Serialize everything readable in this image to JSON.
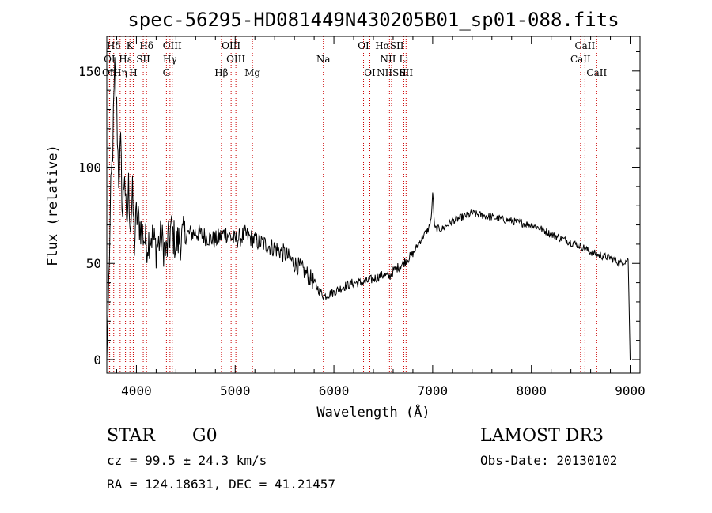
{
  "chart_data": {
    "type": "line",
    "title": "spec-56295-HD081449N430205B01_sp01-088.fits",
    "xlabel": "Wavelength (Å)",
    "ylabel": "Flux (relative)",
    "xlim": [
      3700,
      9100
    ],
    "ylim": [
      -7,
      168
    ],
    "xticks": [
      4000,
      5000,
      6000,
      7000,
      8000,
      9000
    ],
    "yticks": [
      0,
      50,
      100,
      150
    ],
    "x_tick_labels": [
      "4000",
      "5000",
      "6000",
      "7000",
      "8000",
      "9000"
    ],
    "y_tick_labels": [
      "0",
      "50",
      "100",
      "150"
    ],
    "line_color": "#000000",
    "marker_color": "#cc0000",
    "series": [
      {
        "name": "flux",
        "x": [
          3700,
          3720,
          3740,
          3760,
          3780,
          3800,
          3820,
          3840,
          3860,
          3880,
          3900,
          3920,
          3940,
          3960,
          3980,
          4000,
          4050,
          4100,
          4150,
          4200,
          4250,
          4300,
          4350,
          4400,
          4500,
          4600,
          4700,
          4800,
          4900,
          5000,
          5100,
          5200,
          5300,
          5400,
          5500,
          5600,
          5700,
          5800,
          5850,
          5900,
          5950,
          6000,
          6100,
          6200,
          6300,
          6400,
          6500,
          6563,
          6600,
          6700,
          6800,
          6900,
          6960,
          6990,
          7000,
          7020,
          7100,
          7200,
          7300,
          7400,
          7500,
          7600,
          7700,
          7800,
          7900,
          8000,
          8100,
          8200,
          8300,
          8400,
          8500,
          8600,
          8700,
          8800,
          8900,
          8980,
          9000
        ],
        "y": [
          0,
          40,
          85,
          110,
          150,
          130,
          95,
          110,
          75,
          100,
          65,
          90,
          70,
          85,
          60,
          75,
          68,
          60,
          65,
          58,
          63,
          55,
          68,
          60,
          65,
          66,
          64,
          62,
          66,
          62,
          65,
          62,
          60,
          58,
          55,
          50,
          46,
          40,
          36,
          33,
          34,
          35,
          38,
          40,
          40,
          42,
          44,
          43,
          46,
          50,
          55,
          64,
          68,
          75,
          88,
          68,
          68,
          72,
          74,
          76,
          75,
          74,
          73,
          72,
          71,
          70,
          68,
          65,
          63,
          61,
          59,
          56,
          54,
          53,
          50,
          52,
          0
        ]
      }
    ],
    "line_markers": [
      {
        "label": "Hδ",
        "x": 3770,
        "row": 1
      },
      {
        "label": "OI",
        "x": 3727,
        "row": 2
      },
      {
        "label": "OII",
        "x": 3729,
        "row": 3
      },
      {
        "label": "Hε",
        "x": 3889,
        "row": 2
      },
      {
        "label": "Hη",
        "x": 3835,
        "row": 3
      },
      {
        "label": "K",
        "x": 3934,
        "row": 1
      },
      {
        "label": "H",
        "x": 3968,
        "row": 3
      },
      {
        "label": "SII",
        "x": 4069,
        "row": 2
      },
      {
        "label": "Hδ",
        "x": 4102,
        "row": 1
      },
      {
        "label": "OIII",
        "x": 4363,
        "row": 1
      },
      {
        "label": "Hγ",
        "x": 4340,
        "row": 2
      },
      {
        "label": "G",
        "x": 4304,
        "row": 3
      },
      {
        "label": "OIII",
        "x": 4959,
        "row": 1
      },
      {
        "label": "OIII",
        "x": 5007,
        "row": 2
      },
      {
        "label": "Hβ",
        "x": 4861,
        "row": 3
      },
      {
        "label": "Mg",
        "x": 5175,
        "row": 3
      },
      {
        "label": "Na",
        "x": 5893,
        "row": 2
      },
      {
        "label": "OI",
        "x": 6300,
        "row": 1
      },
      {
        "label": "OI",
        "x": 6364,
        "row": 3
      },
      {
        "label": "HαSII",
        "x": 6563,
        "row": 1
      },
      {
        "label": "NII",
        "x": 6548,
        "row": 2
      },
      {
        "label": "Li",
        "x": 6708,
        "row": 2
      },
      {
        "label": "NIISII",
        "x": 6584,
        "row": 3
      },
      {
        "label": "SII",
        "x": 6731,
        "row": 3
      },
      {
        "label": "CaII",
        "x": 8542,
        "row": 1
      },
      {
        "label": "CaII",
        "x": 8498,
        "row": 2
      },
      {
        "label": "CaII",
        "x": 8662,
        "row": 3
      }
    ]
  },
  "info": {
    "object_type": "STAR",
    "spectral_class": "G0",
    "survey": "LAMOST DR3",
    "redshift": "cz = 99.5 ± 24.3 km/s",
    "obs_date": "Obs-Date: 20130102",
    "coords": "RA = 124.18631, DEC =  41.21457"
  }
}
